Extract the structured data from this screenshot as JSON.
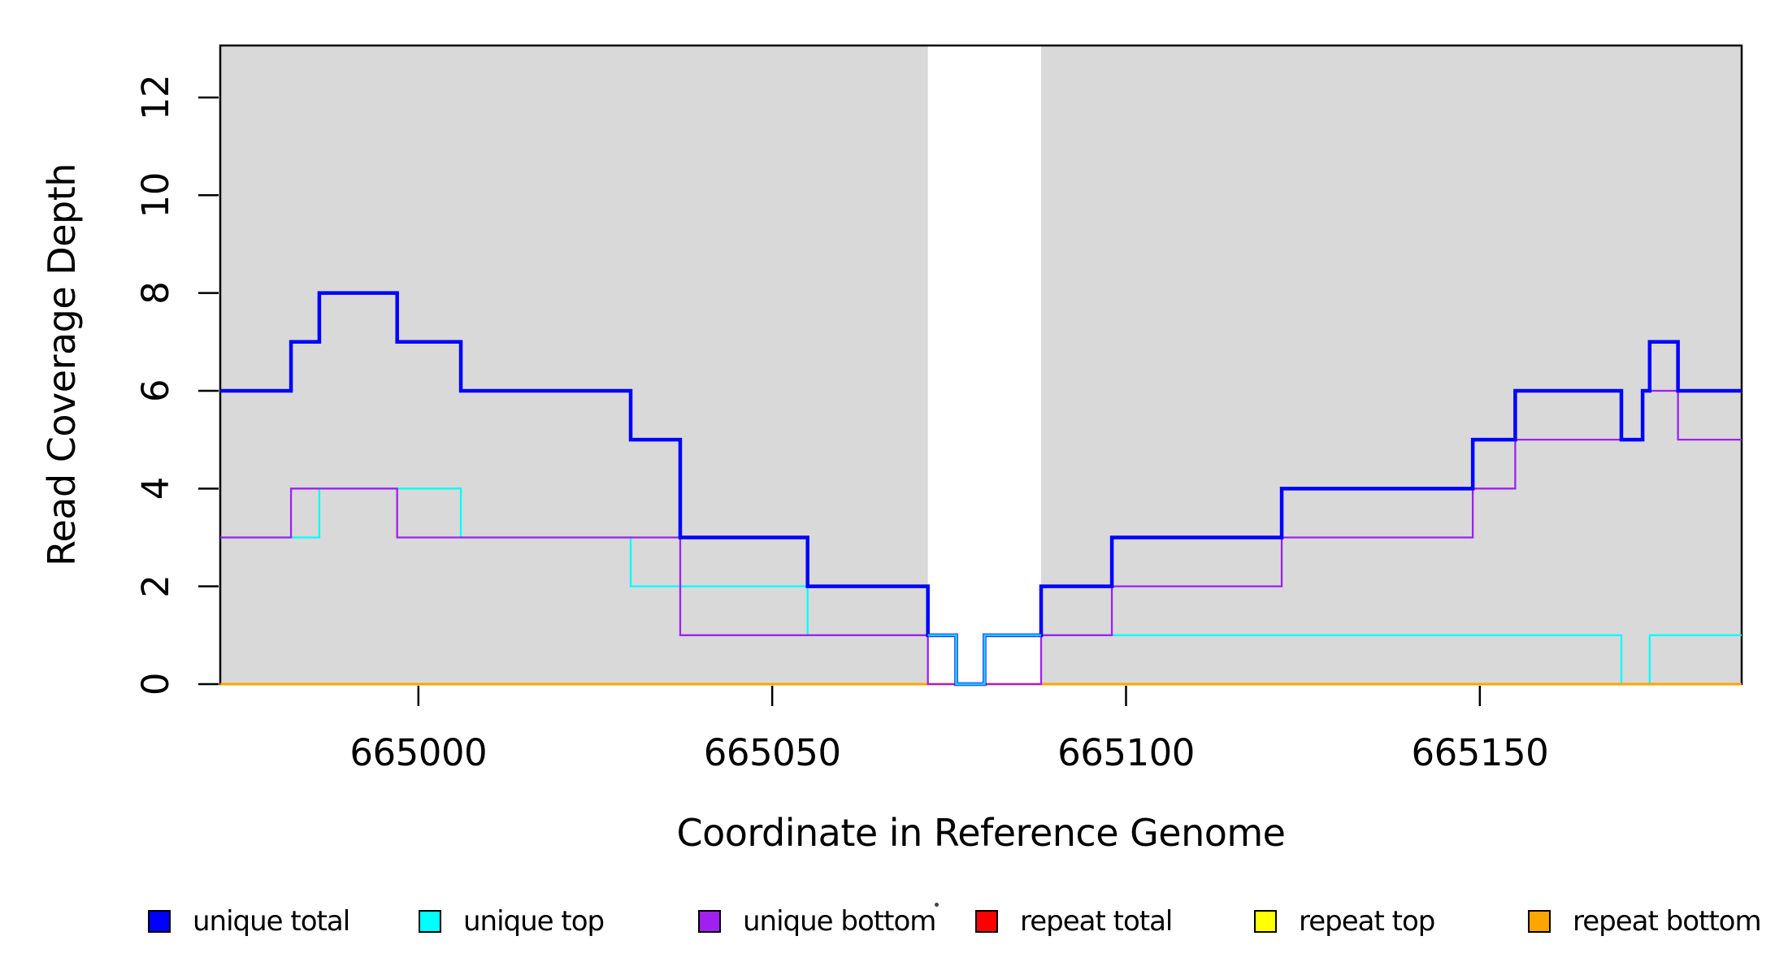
{
  "chart_data": {
    "type": "line",
    "subtype": "step-coverage-plot",
    "title": "",
    "xlabel": "Coordinate in Reference Genome",
    "ylabel": "Read Coverage Depth",
    "x_range": [
      664972,
      665187
    ],
    "y_range": [
      0,
      13.06
    ],
    "x_ticks": [
      665000,
      665050,
      665100,
      665150
    ],
    "y_ticks": [
      0,
      2,
      4,
      6,
      8,
      10,
      12
    ],
    "grid": false,
    "plot_background_color": "#FFFFFF",
    "shaded_region_color": "#D9D9D9",
    "shaded_regions": [
      {
        "from": 664972,
        "to": 665072
      },
      {
        "from": 665088,
        "to": 665187
      }
    ],
    "unshaded_gap": {
      "from": 665072,
      "to": 665088
    },
    "series": [
      {
        "name": "unique total",
        "color": "#0000FF",
        "width": 4.5,
        "breaks": [
          664972,
          664982,
          664986,
          664997,
          665006,
          665030,
          665037,
          665055,
          665072,
          665076,
          665080,
          665088,
          665098,
          665122,
          665149,
          665155,
          665170,
          665173,
          665174,
          665178,
          665187
        ],
        "levels": [
          6,
          7,
          8,
          7,
          6,
          5,
          3,
          2,
          1,
          0,
          1,
          2,
          3,
          4,
          5,
          6,
          5,
          6,
          7,
          6
        ]
      },
      {
        "name": "unique top",
        "color": "#00FFFF",
        "width": 2.3,
        "breaks": [
          664972,
          664986,
          665006,
          665030,
          665055,
          665076,
          665080,
          665170,
          665174,
          665187
        ],
        "levels": [
          3,
          4,
          3,
          2,
          1,
          0,
          1,
          0,
          1
        ]
      },
      {
        "name": "unique bottom",
        "color": "#A020F0",
        "width": 2.3,
        "breaks": [
          664972,
          664982,
          664997,
          665037,
          665072,
          665088,
          665098,
          665122,
          665149,
          665155,
          665173,
          665178,
          665187
        ],
        "levels": [
          3,
          4,
          3,
          1,
          0,
          1,
          2,
          3,
          4,
          5,
          6,
          5
        ]
      },
      {
        "name": "repeat total",
        "color": "#FF0000",
        "width": 2.6,
        "breaks": [
          664972,
          665187
        ],
        "levels": [
          0
        ]
      },
      {
        "name": "repeat top",
        "color": "#FFFF00",
        "width": 2.6,
        "breaks": [
          664972,
          665187
        ],
        "levels": [
          0
        ]
      },
      {
        "name": "repeat bottom",
        "color": "#FFA500",
        "width": 3,
        "breaks": [
          664972,
          665187
        ],
        "levels": [
          0
        ]
      }
    ],
    "draw_order": [
      "repeat total",
      "repeat top",
      "unique top",
      "repeat bottom",
      "unique bottom",
      "unique total"
    ],
    "blue_cyan_overlap_overlay": {
      "note": "inside the unshaded gap the unique-total and unique-top lines coincide and render as light blue",
      "breaks": [
        665072,
        665076,
        665080,
        665088
      ],
      "levels": [
        1,
        0,
        1
      ],
      "mid_color": "#3B9CFF",
      "core_color": "#00E0FF"
    }
  },
  "axes": {
    "x_label": "Coordinate in Reference Genome",
    "y_label": "Read Coverage Depth",
    "tick_color": "#000000",
    "box_color": "#000000"
  },
  "legend": {
    "entries": [
      {
        "label": "unique total",
        "color": "#0000FF"
      },
      {
        "label": "unique top",
        "color": "#00FFFF"
      },
      {
        "label": "unique bottom",
        "color": "#A020F0"
      },
      {
        "label": "repeat total",
        "color": "#FF0000"
      },
      {
        "label": "repeat top",
        "color": "#FFFF00"
      },
      {
        "label": "repeat bottom",
        "color": "#FFA500"
      }
    ]
  }
}
